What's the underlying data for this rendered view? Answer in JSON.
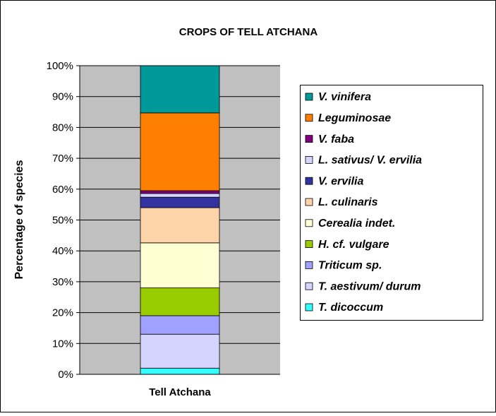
{
  "chart_data": {
    "type": "stacked-bar",
    "title": "CROPS OF TELL ATCHANA",
    "y_label": "Percentage of species",
    "categories": [
      "Tell Atchana"
    ],
    "series": [
      {
        "name": "T. dicoccum",
        "color": "#33ffff",
        "values": [
          2
        ]
      },
      {
        "name": "T. aestivum/ durum",
        "color": "#d4d4ff",
        "values": [
          11
        ]
      },
      {
        "name": "Triticum sp.",
        "color": "#a0a0ff",
        "values": [
          6
        ]
      },
      {
        "name": "H. cf. vulgare",
        "color": "#99cc00",
        "values": [
          9
        ]
      },
      {
        "name": "Cerealia indet.",
        "color": "#ffffd4",
        "values": [
          14.6
        ]
      },
      {
        "name": "L. culinaris",
        "color": "#ffd4a8",
        "values": [
          11.4
        ]
      },
      {
        "name": "V. ervilia",
        "color": "#3333a0",
        "values": [
          3.4
        ]
      },
      {
        "name": "L. sativus/ V. ervilia",
        "color": "#d4d4ff",
        "values": [
          1.2
        ]
      },
      {
        "name": "V. faba",
        "color": "#800080",
        "values": [
          0.9
        ]
      },
      {
        "name": "Leguminosae",
        "color": "#ff8000",
        "values": [
          25.2
        ]
      },
      {
        "name": "V. vinifera",
        "color": "#009999",
        "values": [
          15.3
        ]
      }
    ],
    "ylim": [
      0,
      100
    ],
    "yticks": [
      {
        "value": 0,
        "label": "0%"
      },
      {
        "value": 10,
        "label": "10%"
      },
      {
        "value": 20,
        "label": "20%"
      },
      {
        "value": 30,
        "label": "30%"
      },
      {
        "value": 40,
        "label": "40%"
      },
      {
        "value": 50,
        "label": "50%"
      },
      {
        "value": 60,
        "label": "60%"
      },
      {
        "value": 70,
        "label": "70%"
      },
      {
        "value": 80,
        "label": "80%"
      },
      {
        "value": 90,
        "label": "90%"
      },
      {
        "value": 100,
        "label": "100%"
      }
    ],
    "grid": true,
    "legend": "right"
  }
}
